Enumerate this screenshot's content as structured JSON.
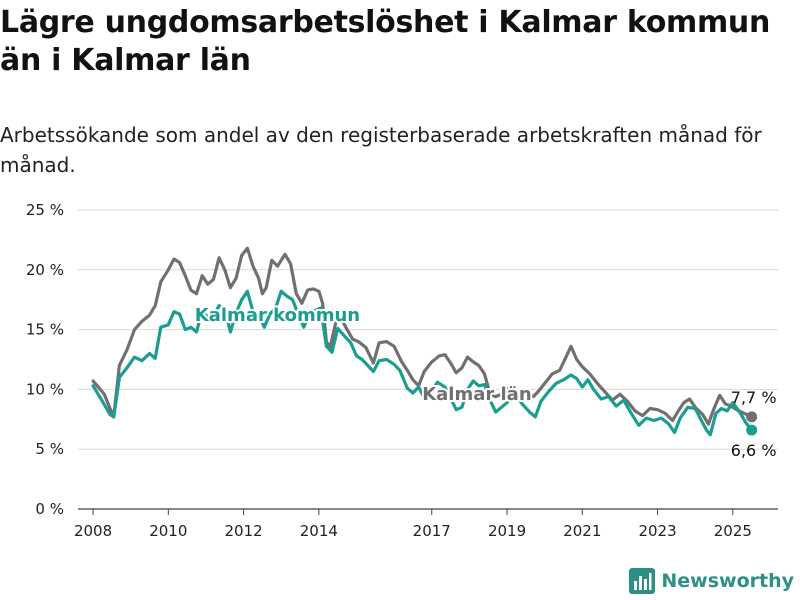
{
  "header": {
    "title": "Lägre ungdomsarbetslöshet i Kalmar kommun än i Kalmar län",
    "subtitle": "Arbetssökande som andel av den registerbaserade arbetskraften månad för månad."
  },
  "brand": {
    "name": "Newsworthy",
    "icon": "bar-chart-icon",
    "color": "#2d8f86"
  },
  "chart_data": {
    "type": "line",
    "title": "Lägre ungdomsarbetslöshet i Kalmar kommun än i Kalmar län",
    "subtitle": "Arbetssökande som andel av den registerbaserade arbetskraften månad för månad.",
    "xlabel": "",
    "ylabel": "",
    "xlim": [
      2007.6,
      2026.2
    ],
    "ylim": [
      0,
      25
    ],
    "x_ticks": [
      2008,
      2010,
      2012,
      2014,
      2017,
      2019,
      2021,
      2023,
      2025
    ],
    "x_tick_labels": [
      "2008",
      "2010",
      "2012",
      "2014",
      "2017",
      "2019",
      "2021",
      "2023",
      "2025"
    ],
    "y_ticks": [
      0,
      5,
      10,
      15,
      20,
      25
    ],
    "y_tick_labels": [
      "0 %",
      "5 %",
      "10 %",
      "15 %",
      "20 %",
      "25 %"
    ],
    "grid": true,
    "legend": "none",
    "series": [
      {
        "name": "Kalmar län",
        "color": "#707070",
        "end_label": "7,7 %",
        "points": [
          [
            2008.0,
            10.7
          ],
          [
            2008.3,
            9.6
          ],
          [
            2008.45,
            8.4
          ],
          [
            2008.55,
            7.8
          ],
          [
            2008.7,
            12.0
          ],
          [
            2008.9,
            13.3
          ],
          [
            2009.1,
            15.0
          ],
          [
            2009.3,
            15.7
          ],
          [
            2009.5,
            16.2
          ],
          [
            2009.65,
            17.0
          ],
          [
            2009.8,
            19.0
          ],
          [
            2010.0,
            20.0
          ],
          [
            2010.15,
            20.9
          ],
          [
            2010.3,
            20.6
          ],
          [
            2010.45,
            19.5
          ],
          [
            2010.6,
            18.3
          ],
          [
            2010.75,
            18.0
          ],
          [
            2010.9,
            19.5
          ],
          [
            2011.05,
            18.8
          ],
          [
            2011.2,
            19.2
          ],
          [
            2011.35,
            21.0
          ],
          [
            2011.5,
            20.0
          ],
          [
            2011.65,
            18.5
          ],
          [
            2011.8,
            19.3
          ],
          [
            2011.95,
            21.2
          ],
          [
            2012.1,
            21.8
          ],
          [
            2012.25,
            20.3
          ],
          [
            2012.4,
            19.3
          ],
          [
            2012.5,
            18.0
          ],
          [
            2012.6,
            18.5
          ],
          [
            2012.75,
            20.8
          ],
          [
            2012.9,
            20.3
          ],
          [
            2013.1,
            21.3
          ],
          [
            2013.25,
            20.5
          ],
          [
            2013.4,
            18.0
          ],
          [
            2013.55,
            17.2
          ],
          [
            2013.7,
            18.3
          ],
          [
            2013.85,
            18.4
          ],
          [
            2014.0,
            18.2
          ],
          [
            2014.1,
            17.2
          ],
          [
            2014.2,
            14.0
          ],
          [
            2014.3,
            13.5
          ],
          [
            2014.45,
            15.6
          ],
          [
            2014.6,
            15.9
          ],
          [
            2014.75,
            15.0
          ],
          [
            2014.9,
            14.2
          ],
          [
            2015.05,
            14.0
          ],
          [
            2015.25,
            13.5
          ],
          [
            2015.45,
            12.2
          ],
          [
            2015.6,
            13.9
          ],
          [
            2015.8,
            14.0
          ],
          [
            2016.0,
            13.6
          ],
          [
            2016.2,
            12.3
          ],
          [
            2016.35,
            11.6
          ],
          [
            2016.5,
            10.8
          ],
          [
            2016.65,
            10.3
          ],
          [
            2016.8,
            11.5
          ],
          [
            2017.0,
            12.3
          ],
          [
            2017.2,
            12.8
          ],
          [
            2017.35,
            12.9
          ],
          [
            2017.5,
            12.2
          ],
          [
            2017.65,
            11.4
          ],
          [
            2017.8,
            11.8
          ],
          [
            2017.95,
            12.7
          ],
          [
            2018.1,
            12.3
          ],
          [
            2018.25,
            12.0
          ],
          [
            2018.4,
            11.3
          ],
          [
            2018.55,
            9.6
          ],
          [
            2018.7,
            9.4
          ],
          [
            2018.85,
            9.6
          ],
          [
            2019.0,
            10.1
          ],
          [
            2019.2,
            9.7
          ],
          [
            2019.4,
            9.2
          ],
          [
            2019.55,
            9.8
          ],
          [
            2019.7,
            9.4
          ],
          [
            2019.85,
            9.9
          ],
          [
            2020.0,
            10.5
          ],
          [
            2020.2,
            11.3
          ],
          [
            2020.4,
            11.6
          ],
          [
            2020.55,
            12.6
          ],
          [
            2020.7,
            13.6
          ],
          [
            2020.85,
            12.5
          ],
          [
            2021.0,
            11.9
          ],
          [
            2021.2,
            11.3
          ],
          [
            2021.4,
            10.5
          ],
          [
            2021.6,
            9.8
          ],
          [
            2021.8,
            9.1
          ],
          [
            2022.0,
            9.6
          ],
          [
            2022.2,
            9.0
          ],
          [
            2022.4,
            8.2
          ],
          [
            2022.6,
            7.8
          ],
          [
            2022.8,
            8.4
          ],
          [
            2023.0,
            8.3
          ],
          [
            2023.2,
            8.0
          ],
          [
            2023.4,
            7.4
          ],
          [
            2023.55,
            8.2
          ],
          [
            2023.7,
            8.9
          ],
          [
            2023.85,
            9.2
          ],
          [
            2024.0,
            8.5
          ],
          [
            2024.2,
            7.9
          ],
          [
            2024.35,
            7.1
          ],
          [
            2024.5,
            8.4
          ],
          [
            2024.65,
            9.5
          ],
          [
            2024.8,
            8.8
          ],
          [
            2024.95,
            8.6
          ],
          [
            2025.1,
            8.3
          ],
          [
            2025.3,
            8.0
          ],
          [
            2025.5,
            7.7
          ]
        ]
      },
      {
        "name": "Kalmar kommun",
        "color": "#1a9e8f",
        "end_label": "6,6 %",
        "points": [
          [
            2008.0,
            10.3
          ],
          [
            2008.25,
            9.0
          ],
          [
            2008.45,
            7.9
          ],
          [
            2008.55,
            7.7
          ],
          [
            2008.7,
            11.0
          ],
          [
            2008.9,
            11.8
          ],
          [
            2009.1,
            12.7
          ],
          [
            2009.3,
            12.4
          ],
          [
            2009.5,
            13.0
          ],
          [
            2009.65,
            12.6
          ],
          [
            2009.8,
            15.2
          ],
          [
            2010.0,
            15.4
          ],
          [
            2010.15,
            16.5
          ],
          [
            2010.3,
            16.3
          ],
          [
            2010.45,
            15.0
          ],
          [
            2010.6,
            15.2
          ],
          [
            2010.75,
            14.8
          ],
          [
            2010.9,
            16.6
          ],
          [
            2011.05,
            16.0
          ],
          [
            2011.2,
            16.2
          ],
          [
            2011.35,
            17.0
          ],
          [
            2011.5,
            16.7
          ],
          [
            2011.65,
            14.8
          ],
          [
            2011.8,
            16.4
          ],
          [
            2011.95,
            17.5
          ],
          [
            2012.1,
            18.2
          ],
          [
            2012.25,
            16.5
          ],
          [
            2012.4,
            16.3
          ],
          [
            2012.55,
            15.2
          ],
          [
            2012.7,
            16.3
          ],
          [
            2012.85,
            16.8
          ],
          [
            2013.0,
            18.2
          ],
          [
            2013.15,
            17.8
          ],
          [
            2013.3,
            17.5
          ],
          [
            2013.45,
            16.3
          ],
          [
            2013.6,
            15.2
          ],
          [
            2013.75,
            16.4
          ],
          [
            2013.9,
            16.6
          ],
          [
            2014.05,
            16.8
          ],
          [
            2014.2,
            13.6
          ],
          [
            2014.35,
            13.1
          ],
          [
            2014.5,
            15.1
          ],
          [
            2014.7,
            14.4
          ],
          [
            2014.85,
            13.9
          ],
          [
            2015.0,
            12.8
          ],
          [
            2015.15,
            12.5
          ],
          [
            2015.3,
            12.0
          ],
          [
            2015.45,
            11.5
          ],
          [
            2015.6,
            12.4
          ],
          [
            2015.8,
            12.5
          ],
          [
            2016.0,
            12.1
          ],
          [
            2016.15,
            11.6
          ],
          [
            2016.35,
            10.1
          ],
          [
            2016.5,
            9.7
          ],
          [
            2016.65,
            10.2
          ],
          [
            2016.8,
            9.3
          ],
          [
            2017.0,
            9.8
          ],
          [
            2017.15,
            10.6
          ],
          [
            2017.35,
            10.2
          ],
          [
            2017.5,
            9.3
          ],
          [
            2017.65,
            8.3
          ],
          [
            2017.8,
            8.5
          ],
          [
            2017.95,
            10.0
          ],
          [
            2018.1,
            10.7
          ],
          [
            2018.25,
            10.3
          ],
          [
            2018.4,
            10.4
          ],
          [
            2018.55,
            9.1
          ],
          [
            2018.7,
            8.1
          ],
          [
            2018.85,
            8.5
          ],
          [
            2019.0,
            8.9
          ],
          [
            2019.2,
            9.6
          ],
          [
            2019.4,
            8.8
          ],
          [
            2019.6,
            8.1
          ],
          [
            2019.75,
            7.7
          ],
          [
            2019.9,
            9.0
          ],
          [
            2020.1,
            9.8
          ],
          [
            2020.3,
            10.5
          ],
          [
            2020.5,
            10.8
          ],
          [
            2020.7,
            11.2
          ],
          [
            2020.85,
            10.9
          ],
          [
            2021.0,
            10.2
          ],
          [
            2021.15,
            10.8
          ],
          [
            2021.3,
            10.0
          ],
          [
            2021.5,
            9.2
          ],
          [
            2021.7,
            9.4
          ],
          [
            2021.9,
            8.6
          ],
          [
            2022.1,
            9.1
          ],
          [
            2022.3,
            8.0
          ],
          [
            2022.5,
            7.0
          ],
          [
            2022.7,
            7.6
          ],
          [
            2022.9,
            7.4
          ],
          [
            2023.1,
            7.6
          ],
          [
            2023.3,
            7.1
          ],
          [
            2023.45,
            6.4
          ],
          [
            2023.6,
            7.6
          ],
          [
            2023.8,
            8.5
          ],
          [
            2024.0,
            8.4
          ],
          [
            2024.15,
            7.5
          ],
          [
            2024.3,
            6.6
          ],
          [
            2024.4,
            6.2
          ],
          [
            2024.55,
            8.0
          ],
          [
            2024.7,
            8.4
          ],
          [
            2024.85,
            8.2
          ],
          [
            2025.0,
            8.9
          ],
          [
            2025.2,
            8.0
          ],
          [
            2025.35,
            7.2
          ],
          [
            2025.5,
            6.6
          ]
        ]
      }
    ]
  }
}
